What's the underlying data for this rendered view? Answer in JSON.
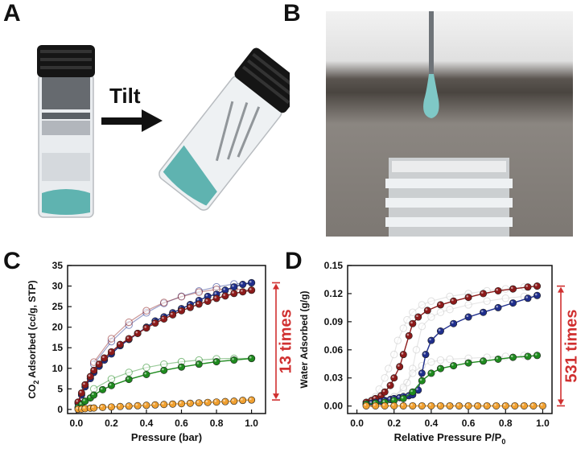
{
  "panels": {
    "a": {
      "letter": "A",
      "tilt_label": "Tilt"
    },
    "b": {
      "letter": "B"
    },
    "c": {
      "letter": "C"
    },
    "d": {
      "letter": "D"
    }
  },
  "colors": {
    "navy": "#1f2e8c",
    "darkred": "#8c1a1a",
    "green": "#1e8a1e",
    "orange": "#f0a030",
    "open_gray": "#c8c8c8",
    "arrow_red": "#d03030",
    "gel": "#5fb3b0"
  },
  "chart_data": [
    {
      "type": "scatter",
      "panel": "C",
      "xlabel": "Pressure (bar)",
      "ylabel_parts": [
        "CO",
        "2",
        " Adsorbed (cc/g, STP)"
      ],
      "xlim": [
        -0.05,
        1.08
      ],
      "ylim": [
        -1,
        35
      ],
      "xticks": [
        0.0,
        0.2,
        0.4,
        0.6,
        0.8,
        1.0
      ],
      "xtick_labels": [
        "0.0",
        "0.2",
        "0.4",
        "0.6",
        "0.8",
        "1.0"
      ],
      "yticks": [
        0,
        5,
        10,
        15,
        20,
        25,
        30,
        35
      ],
      "ytick_labels": [
        "0",
        "5",
        "10",
        "15",
        "20",
        "25",
        "30",
        "35"
      ],
      "annotation": "13 times",
      "annotation_range": [
        2.3,
        30.8
      ],
      "series": [
        {
          "color": "navy",
          "filled": true,
          "x": [
            0.01,
            0.03,
            0.05,
            0.08,
            0.1,
            0.13,
            0.16,
            0.2,
            0.25,
            0.3,
            0.35,
            0.4,
            0.45,
            0.5,
            0.55,
            0.6,
            0.65,
            0.7,
            0.75,
            0.8,
            0.85,
            0.9,
            0.95,
            1.0
          ],
          "y": [
            1.5,
            3.5,
            5.5,
            7.5,
            9.0,
            10.5,
            12.0,
            13.5,
            15.5,
            17.0,
            18.5,
            20.0,
            21.5,
            22.5,
            23.5,
            24.5,
            25.5,
            26.5,
            27.5,
            28.0,
            29.0,
            29.8,
            30.4,
            30.8
          ]
        },
        {
          "color": "darkred",
          "filled": true,
          "x": [
            0.01,
            0.03,
            0.05,
            0.08,
            0.1,
            0.13,
            0.16,
            0.2,
            0.25,
            0.3,
            0.35,
            0.4,
            0.45,
            0.5,
            0.55,
            0.6,
            0.65,
            0.7,
            0.75,
            0.8,
            0.85,
            0.9,
            0.95,
            1.0
          ],
          "y": [
            1.8,
            4.0,
            6.0,
            8.0,
            9.5,
            11.0,
            12.5,
            14.0,
            15.8,
            17.2,
            18.5,
            19.8,
            21.0,
            22.0,
            23.0,
            24.0,
            24.8,
            25.6,
            26.3,
            27.0,
            27.6,
            28.2,
            28.6,
            29.0
          ]
        },
        {
          "color": "navy",
          "filled": false,
          "x": [
            1.0,
            0.9,
            0.8,
            0.7,
            0.6,
            0.5,
            0.4,
            0.3,
            0.2,
            0.1
          ],
          "y": [
            30.8,
            30.5,
            29.8,
            28.8,
            27.5,
            25.8,
            23.5,
            20.5,
            16.5,
            11.0
          ]
        },
        {
          "color": "darkred",
          "filled": false,
          "x": [
            1.0,
            0.9,
            0.8,
            0.7,
            0.6,
            0.5,
            0.4,
            0.3,
            0.2,
            0.1
          ],
          "y": [
            29.0,
            29.3,
            29.2,
            28.5,
            27.4,
            26.0,
            24.0,
            21.2,
            17.2,
            11.5
          ]
        },
        {
          "color": "green",
          "filled": true,
          "x": [
            0.01,
            0.03,
            0.05,
            0.08,
            0.1,
            0.15,
            0.2,
            0.3,
            0.4,
            0.5,
            0.6,
            0.7,
            0.8,
            0.9,
            1.0
          ],
          "y": [
            0.5,
            1.2,
            2.0,
            2.8,
            3.5,
            4.8,
            5.8,
            7.3,
            8.5,
            9.5,
            10.3,
            11.0,
            11.6,
            12.0,
            12.4
          ]
        },
        {
          "color": "green",
          "filled": false,
          "x": [
            1.0,
            0.9,
            0.8,
            0.7,
            0.6,
            0.5,
            0.4,
            0.3,
            0.2,
            0.1
          ],
          "y": [
            12.4,
            12.4,
            12.3,
            12.0,
            11.6,
            11.0,
            10.2,
            9.0,
            7.4,
            5.0
          ]
        },
        {
          "color": "orange",
          "filled": true,
          "x": [
            0.01,
            0.03,
            0.05,
            0.08,
            0.1,
            0.15,
            0.2,
            0.25,
            0.3,
            0.35,
            0.4,
            0.45,
            0.5,
            0.55,
            0.6,
            0.65,
            0.7,
            0.75,
            0.8,
            0.85,
            0.9,
            0.95,
            1.0
          ],
          "y": [
            0.05,
            0.1,
            0.2,
            0.3,
            0.35,
            0.5,
            0.6,
            0.7,
            0.8,
            0.9,
            1.0,
            1.1,
            1.2,
            1.3,
            1.4,
            1.5,
            1.6,
            1.7,
            1.8,
            1.9,
            2.0,
            2.2,
            2.3
          ]
        }
      ]
    },
    {
      "type": "scatter",
      "panel": "D",
      "xlabel_parts": [
        "Relative Pressure P/P",
        "0"
      ],
      "ylabel": "Water Adsorbed (g/g)",
      "xlim": [
        -0.05,
        1.05
      ],
      "ylim": [
        -0.008,
        0.15
      ],
      "xticks": [
        0.0,
        0.2,
        0.4,
        0.6,
        0.8,
        1.0
      ],
      "xtick_labels": [
        "0.0",
        "0.2",
        "0.4",
        "0.6",
        "0.8",
        "1.0"
      ],
      "yticks": [
        0.0,
        0.03,
        0.06,
        0.09,
        0.12,
        0.15
      ],
      "ytick_labels": [
        "0.00",
        "0.03",
        "0.06",
        "0.09",
        "0.12",
        "0.15"
      ],
      "annotation": "531 times",
      "annotation_range": [
        0.0002,
        0.128
      ],
      "series": [
        {
          "color": "darkred",
          "filled": true,
          "x": [
            0.05,
            0.08,
            0.1,
            0.13,
            0.15,
            0.18,
            0.2,
            0.23,
            0.25,
            0.28,
            0.3,
            0.33,
            0.38,
            0.45,
            0.52,
            0.6,
            0.68,
            0.76,
            0.84,
            0.92,
            0.97
          ],
          "y": [
            0.004,
            0.006,
            0.008,
            0.011,
            0.015,
            0.022,
            0.03,
            0.042,
            0.055,
            0.075,
            0.088,
            0.095,
            0.102,
            0.108,
            0.112,
            0.116,
            0.12,
            0.123,
            0.125,
            0.127,
            0.128
          ]
        },
        {
          "color": "navy",
          "filled": true,
          "x": [
            0.05,
            0.08,
            0.1,
            0.13,
            0.15,
            0.18,
            0.2,
            0.23,
            0.25,
            0.28,
            0.3,
            0.33,
            0.35,
            0.37,
            0.4,
            0.45,
            0.52,
            0.6,
            0.68,
            0.76,
            0.84,
            0.92,
            0.97
          ],
          "y": [
            0.002,
            0.003,
            0.004,
            0.005,
            0.006,
            0.007,
            0.008,
            0.009,
            0.01,
            0.011,
            0.012,
            0.017,
            0.035,
            0.055,
            0.07,
            0.08,
            0.088,
            0.095,
            0.1,
            0.105,
            0.11,
            0.115,
            0.118
          ]
        },
        {
          "color": "green",
          "filled": true,
          "x": [
            0.05,
            0.1,
            0.15,
            0.2,
            0.25,
            0.3,
            0.35,
            0.4,
            0.45,
            0.52,
            0.6,
            0.68,
            0.76,
            0.84,
            0.92,
            0.97
          ],
          "y": [
            0.002,
            0.003,
            0.004,
            0.006,
            0.008,
            0.015,
            0.027,
            0.035,
            0.04,
            0.043,
            0.046,
            0.048,
            0.05,
            0.052,
            0.053,
            0.054
          ]
        },
        {
          "color": "orange",
          "filled": true,
          "x": [
            0.05,
            0.1,
            0.15,
            0.2,
            0.25,
            0.3,
            0.35,
            0.4,
            0.45,
            0.5,
            0.55,
            0.6,
            0.65,
            0.7,
            0.75,
            0.8,
            0.85,
            0.9,
            0.95,
            1.0
          ],
          "y": [
            0.0002,
            0.0002,
            0.0002,
            0.0002,
            0.0002,
            0.0002,
            0.0002,
            0.0002,
            0.0002,
            0.0002,
            0.0002,
            0.0002,
            0.0002,
            0.0002,
            0.0002,
            0.0002,
            0.0002,
            0.0002,
            0.0002,
            0.0002
          ]
        },
        {
          "color": "open_gray",
          "filled": false,
          "x": [
            0.97,
            0.9,
            0.8,
            0.7,
            0.6,
            0.5,
            0.4,
            0.35,
            0.3,
            0.27,
            0.25,
            0.22,
            0.2,
            0.17,
            0.15,
            0.12,
            0.1,
            0.07
          ],
          "y": [
            0.128,
            0.127,
            0.125,
            0.123,
            0.12,
            0.117,
            0.112,
            0.108,
            0.1,
            0.092,
            0.083,
            0.07,
            0.055,
            0.04,
            0.03,
            0.018,
            0.01,
            0.005
          ]
        },
        {
          "color": "open_gray",
          "filled": false,
          "x": [
            0.97,
            0.9,
            0.8,
            0.7,
            0.6,
            0.5,
            0.45,
            0.4,
            0.35,
            0.32,
            0.3,
            0.27,
            0.25,
            0.2,
            0.15,
            0.1
          ],
          "y": [
            0.118,
            0.117,
            0.115,
            0.112,
            0.108,
            0.103,
            0.1,
            0.095,
            0.085,
            0.06,
            0.04,
            0.025,
            0.018,
            0.01,
            0.006,
            0.003
          ]
        },
        {
          "color": "open_gray",
          "filled": false,
          "x": [
            0.97,
            0.9,
            0.8,
            0.7,
            0.6,
            0.5,
            0.45,
            0.4,
            0.35,
            0.3,
            0.25,
            0.2
          ],
          "y": [
            0.054,
            0.054,
            0.053,
            0.052,
            0.051,
            0.05,
            0.049,
            0.047,
            0.043,
            0.035,
            0.02,
            0.01
          ]
        }
      ]
    }
  ]
}
